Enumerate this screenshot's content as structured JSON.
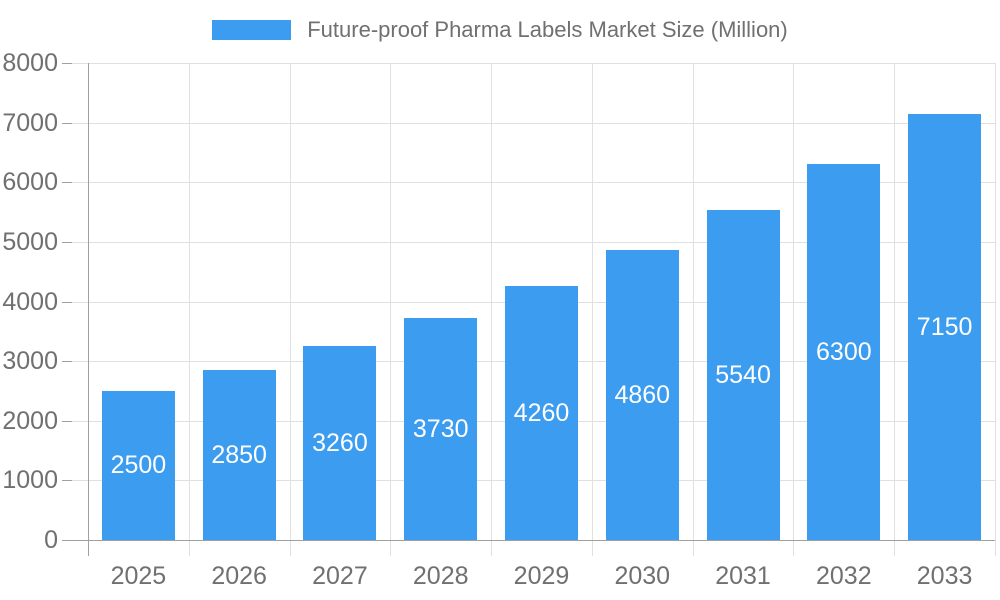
{
  "legend": {
    "label": "Future-proof Pharma Labels Market Size (Million)"
  },
  "chart_data": {
    "type": "bar",
    "title": "Future-proof Pharma Labels Market Size (Million)",
    "categories": [
      "2025",
      "2026",
      "2027",
      "2028",
      "2029",
      "2030",
      "2031",
      "2032",
      "2033"
    ],
    "values": [
      2500,
      2850,
      3260,
      3730,
      4260,
      4860,
      5540,
      6300,
      7150
    ],
    "xlabel": "",
    "ylabel": "",
    "ylim": [
      0,
      8000
    ],
    "y_ticks": [
      0,
      1000,
      2000,
      3000,
      4000,
      5000,
      6000,
      7000,
      8000
    ],
    "grid": true,
    "legend_position": "top-center",
    "value_labels": "inside-center",
    "colors": {
      "bar": "#3B9CF0",
      "grid": "#e0e0e0",
      "axis": "#a0a0a0",
      "tick_label": "#707070",
      "value_label": "#ffffff"
    }
  }
}
